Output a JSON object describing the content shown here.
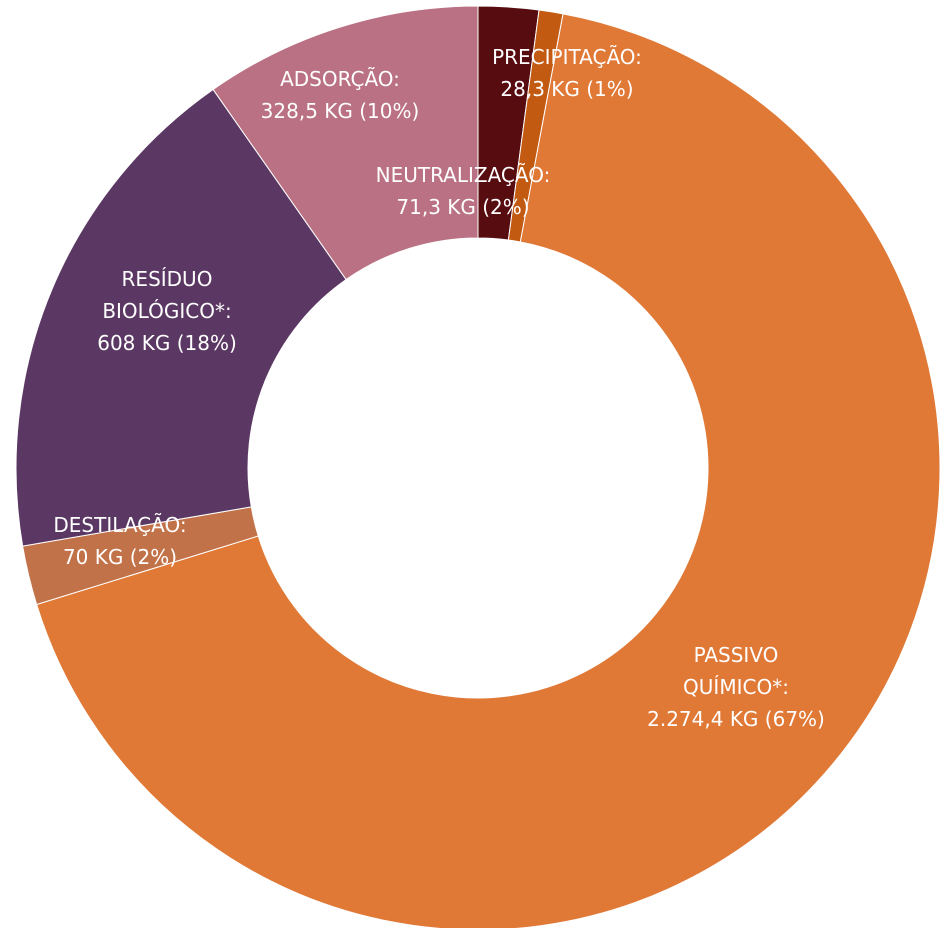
{
  "chart_data": {
    "type": "pie",
    "donut": true,
    "title": "",
    "legend": "none",
    "slices": [
      {
        "label_lines": [
          "NEUTRALIZAÇÃO:",
          "71,3 KG (2%)"
        ],
        "value": 71.3,
        "color": "#570c10"
      },
      {
        "label_lines": [
          "PRECIPITAÇÃO:",
          "28,3 KG (1%)"
        ],
        "value": 28.3,
        "color": "#c25a12"
      },
      {
        "label_lines": [
          "PASSIVO",
          "QUÍMICO*:",
          "2.274,4 KG (67%)"
        ],
        "value": 2274.4,
        "color": "#e07836"
      },
      {
        "label_lines": [
          "DESTILAÇÃO:",
          "70 KG (2%)"
        ],
        "value": 70,
        "color": "#c27248"
      },
      {
        "label_lines": [
          "RESÍDUO",
          "BIOLÓGICO*:",
          "608 KG (18%)"
        ],
        "value": 608,
        "color": "#5b3863"
      },
      {
        "label_lines": [
          "ADSORÇÃO:",
          "328,5 KG (10%)"
        ],
        "value": 328.5,
        "color": "#b97183"
      }
    ]
  }
}
